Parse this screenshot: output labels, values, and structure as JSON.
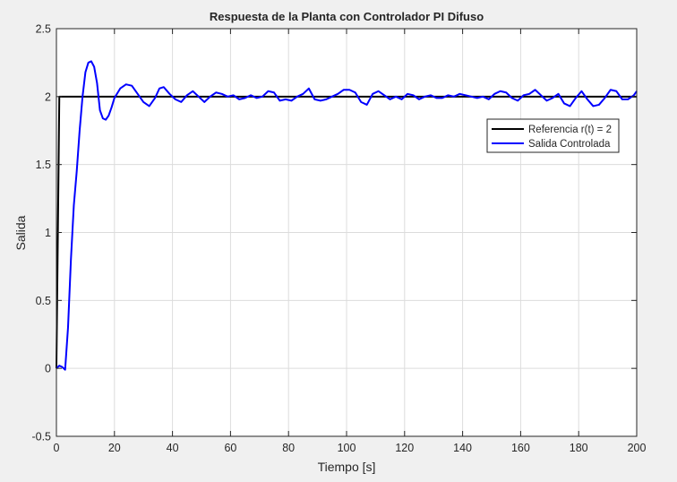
{
  "chart_data": {
    "type": "line",
    "title": "Respuesta de la Planta con Controlador PI Difuso",
    "xlabel": "Tiempo [s]",
    "ylabel": "Salida",
    "xlim": [
      0,
      200
    ],
    "ylim": [
      -0.5,
      2.5
    ],
    "xticks": [
      0,
      20,
      40,
      60,
      80,
      100,
      120,
      140,
      160,
      180,
      200
    ],
    "yticks": [
      -0.5,
      0,
      0.5,
      1,
      1.5,
      2,
      2.5
    ],
    "xtick_labels": [
      "0",
      "20",
      "40",
      "60",
      "80",
      "100",
      "120",
      "140",
      "160",
      "180",
      "200"
    ],
    "ytick_labels": [
      "-0.5",
      "0",
      "0.5",
      "1",
      "1.5",
      "2",
      "2.5"
    ],
    "grid": true,
    "legend_position": "upper-right",
    "series": [
      {
        "name": "Referencia r(t) = 2",
        "color": "#000000",
        "x": [
          0,
          1,
          200
        ],
        "y": [
          0,
          2,
          2
        ]
      },
      {
        "name": "Salida Controlada",
        "color": "#0000ff",
        "x": [
          0,
          1,
          2,
          3,
          4,
          5,
          6,
          7,
          8,
          9,
          10,
          11,
          12,
          13,
          14,
          15,
          16,
          17,
          18,
          19,
          20,
          22,
          24,
          26,
          28,
          30,
          32,
          34,
          35.5,
          37,
          39,
          41,
          43,
          45,
          47,
          49,
          51,
          53,
          55,
          57,
          59,
          61,
          63,
          65,
          67,
          69,
          71,
          73,
          75,
          77,
          79,
          81,
          83,
          85,
          87,
          89,
          91,
          93,
          95,
          97,
          99,
          101,
          103,
          105,
          107,
          109,
          111,
          113,
          115,
          117,
          119,
          121,
          123,
          125,
          127,
          129,
          131,
          133,
          135,
          137,
          139,
          141,
          143,
          145,
          147,
          149,
          151,
          153,
          155,
          157,
          159,
          161,
          163,
          165,
          167,
          169,
          171,
          173,
          175,
          177,
          179,
          181,
          183,
          185,
          187,
          189,
          191,
          193,
          195,
          197,
          199,
          200
        ],
        "y": [
          0.0,
          0.02,
          0.01,
          -0.01,
          0.3,
          0.8,
          1.2,
          1.45,
          1.75,
          2.0,
          2.18,
          2.25,
          2.26,
          2.22,
          2.1,
          1.9,
          1.84,
          1.83,
          1.86,
          1.92,
          1.99,
          2.06,
          2.09,
          2.08,
          2.02,
          1.96,
          1.93,
          1.99,
          2.06,
          2.07,
          2.02,
          1.98,
          1.96,
          2.01,
          2.04,
          2.0,
          1.96,
          2.0,
          2.03,
          2.02,
          2.0,
          2.01,
          1.98,
          1.99,
          2.01,
          1.99,
          2.0,
          2.04,
          2.03,
          1.97,
          1.98,
          1.97,
          2.0,
          2.02,
          2.06,
          1.98,
          1.97,
          1.98,
          2.0,
          2.02,
          2.05,
          2.05,
          2.03,
          1.96,
          1.94,
          2.02,
          2.04,
          2.01,
          1.98,
          2.0,
          1.98,
          2.02,
          2.01,
          1.98,
          2.0,
          2.01,
          1.99,
          1.99,
          2.01,
          2.0,
          2.02,
          2.01,
          2.0,
          1.99,
          2.0,
          1.98,
          2.02,
          2.04,
          2.03,
          1.99,
          1.97,
          2.01,
          2.02,
          2.05,
          2.01,
          1.97,
          1.99,
          2.02,
          1.95,
          1.93,
          1.99,
          2.04,
          1.98,
          1.93,
          1.94,
          1.99,
          2.05,
          2.04,
          1.98,
          1.98,
          2.01,
          2.04
        ]
      }
    ]
  }
}
